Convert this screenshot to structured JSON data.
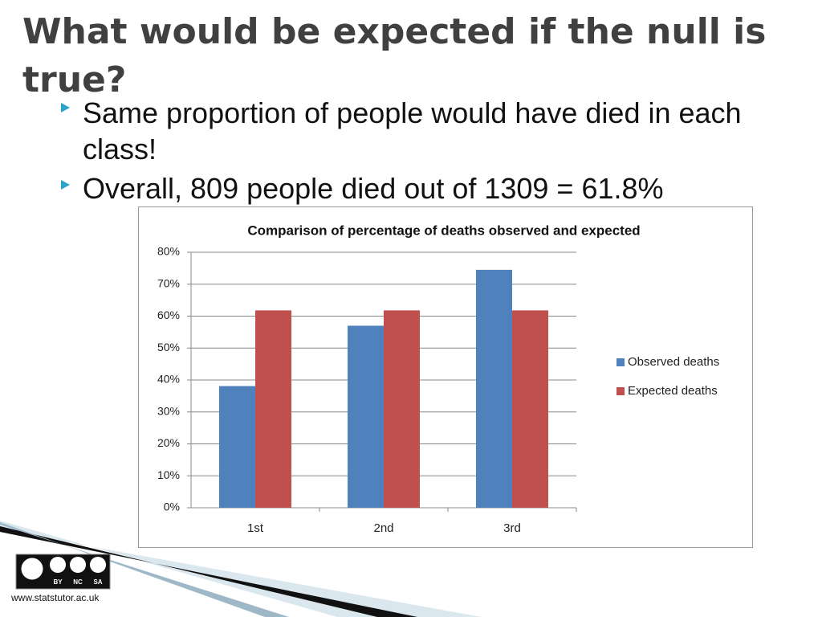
{
  "header": {
    "title": "What would be expected if the null is true?"
  },
  "bullets": [
    "Same proportion of people would have died in each class!",
    "Overall, 809 people died out of 1309 = 61.8%"
  ],
  "chart_data": {
    "type": "bar",
    "title": "Comparison of percentage of deaths observed and expected",
    "categories": [
      "1st",
      "2nd",
      "3rd"
    ],
    "series": [
      {
        "name": "Observed deaths",
        "color": "#4f81bd",
        "values": [
          38.1,
          57.0,
          74.5
        ]
      },
      {
        "name": "Expected deaths",
        "color": "#c0504d",
        "values": [
          61.8,
          61.8,
          61.8
        ]
      }
    ],
    "ylim": [
      0,
      80
    ],
    "yticks": [
      {
        "value": 0,
        "label": "0%"
      },
      {
        "value": 10,
        "label": "10%"
      },
      {
        "value": 20,
        "label": "20%"
      },
      {
        "value": 30,
        "label": "30%"
      },
      {
        "value": 40,
        "label": "40%"
      },
      {
        "value": 50,
        "label": "50%"
      },
      {
        "value": 60,
        "label": "60%"
      },
      {
        "value": 70,
        "label": "70%"
      },
      {
        "value": 80,
        "label": "80%"
      }
    ],
    "grid": true,
    "legend": "right"
  },
  "footer": {
    "license": [
      "BY",
      "NC",
      "SA"
    ],
    "url": "www.statstutor.ac.uk"
  }
}
